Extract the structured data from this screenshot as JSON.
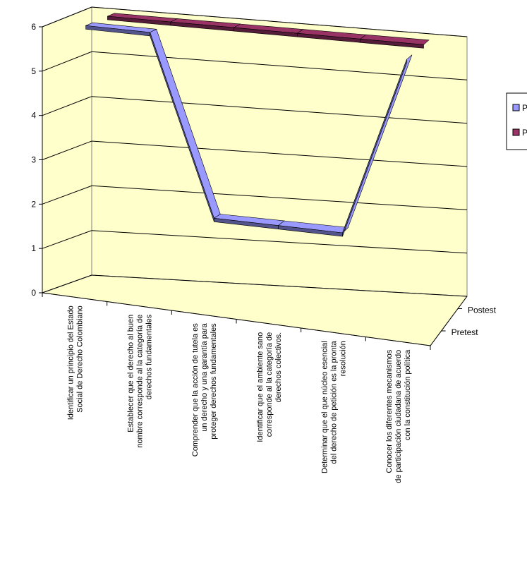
{
  "chart_data": {
    "type": "line3d",
    "categories": [
      "Identificar un principio del Estado\nSocial de Derecho Colombiano",
      "Establecer que el derecho al buen\nnombre corresponde al la categoría de\nderechos fundamentales",
      "Comprender que la acción de tutela es\nun derecho y una garantía para\nproteger derechos fundamentales",
      "Identificar que el ambiente sano\ncorresponde al la categoría de\nderechos colectivos.",
      "Determinar que el que núcleo esencial\ndel derecho de petición es la pronta\nresolución",
      "Conocer los diferentes mecanismos\nde participación ciudadana de acuerdo\ncon la constitución política"
    ],
    "series": [
      {
        "name": "Pretest",
        "color": "#9999ff",
        "values": [
          6,
          6,
          2,
          2,
          2,
          6
        ]
      },
      {
        "name": "Postest",
        "color": "#993366",
        "values": [
          6,
          6,
          6,
          6,
          6,
          6
        ]
      }
    ],
    "ylim": [
      0,
      6
    ],
    "yticks": [
      0,
      1,
      2,
      3,
      4,
      5,
      6
    ],
    "grid": true
  }
}
